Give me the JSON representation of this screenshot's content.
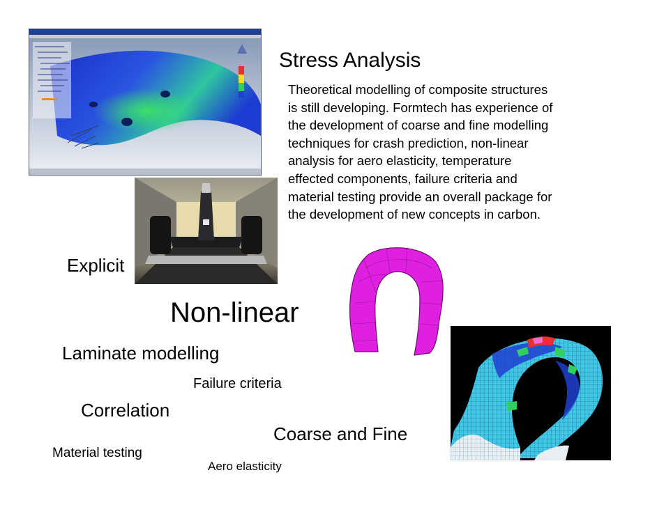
{
  "slide": {
    "title": "Stress Analysis",
    "paragraph_lines": [
      "Theoretical modelling of composite structures",
      "is still developing.  Formtech has experience of",
      "the development of coarse and fine modelling",
      "techniques for crash prediction, non-linear",
      "analysis for aero elasticity, temperature",
      "effected components, failure criteria and",
      "material testing provide an overall package for",
      "the development of new concepts in carbon."
    ],
    "keywords": {
      "explicit": "Explicit",
      "non_linear": "Non-linear",
      "laminate": "Laminate modelling",
      "failure": "Failure criteria",
      "correlation": "Correlation",
      "coarse_fine": "Coarse and Fine",
      "material": "Material testing",
      "aero": "Aero elasticity"
    }
  },
  "colors": {
    "background": "#ffffff",
    "text": "#000000",
    "fea_blue": "#2a4fd8",
    "fea_green": "#2cd26a",
    "model_magenta": "#e020e0",
    "mesh_cyan": "#3ec8e8"
  },
  "images": [
    {
      "name": "cae-software-screenshot"
    },
    {
      "name": "racecar-wind-tunnel-photo"
    },
    {
      "name": "magenta-fe-model"
    },
    {
      "name": "crash-mesh-plot"
    }
  ]
}
